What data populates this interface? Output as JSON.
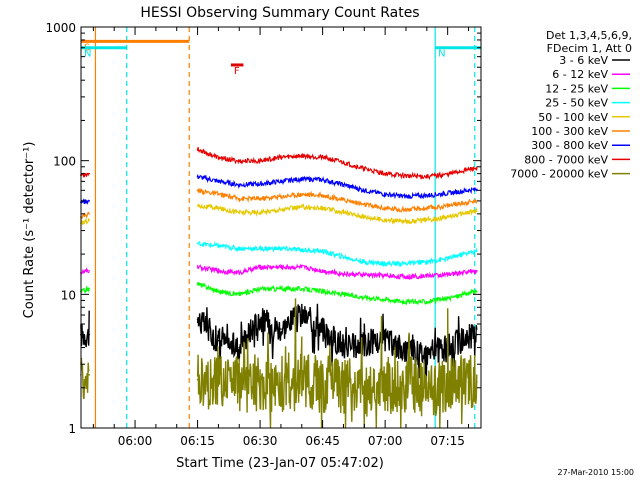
{
  "chart_data": {
    "type": "line",
    "title": "HESSI Observing Summary Count Rates",
    "xlabel": "Start Time (23-Jan-07 05:47:02)",
    "ylabel": "Count Rate (s⁻¹ detector⁻¹)",
    "x_unit": "UT time, 23-Jan-2007",
    "xlim": [
      "05:47:02",
      "07:23:00"
    ],
    "ylim": [
      1,
      1000
    ],
    "yscale": "log",
    "x_ticks": [
      "06:00",
      "06:15",
      "06:30",
      "06:45",
      "07:00",
      "07:15"
    ],
    "y_ticks": [
      "1",
      "10",
      "100",
      "1000"
    ],
    "legend_title": [
      "Det 1,3,4,5,6,9,",
      "FDecim 1, Att 0"
    ],
    "legend_position": "right",
    "grid": false,
    "flags": [
      {
        "label": "S",
        "color": "#ff8000",
        "start": "05:47:02",
        "end": "06:13:00",
        "level": 780
      },
      {
        "label": "N",
        "color": "#00e6e6",
        "start": "05:47:02",
        "end": "05:58:00",
        "level": 700
      },
      {
        "label": "N",
        "color": "#00e6e6",
        "start": "07:12:00",
        "end": "07:23:00",
        "level": 700
      },
      {
        "label": "F",
        "color": "#e00000",
        "start": "06:23:00",
        "end": "06:26:00",
        "level": 520
      }
    ],
    "vertical_markers": [
      {
        "time": "05:50:30",
        "color": "#ff8000",
        "style": "solid"
      },
      {
        "time": "05:58:00",
        "color": "#00e6e6",
        "style": "dashed"
      },
      {
        "time": "06:13:00",
        "color": "#ff8000",
        "style": "dashed"
      },
      {
        "time": "07:12:00",
        "color": "#00e6e6",
        "style": "solid"
      },
      {
        "time": "07:21:30",
        "color": "#00e6e6",
        "style": "dashed"
      }
    ],
    "x": [
      "05:47",
      "05:49",
      "06:13",
      "06:15",
      "06:20",
      "06:25",
      "06:30",
      "06:35",
      "06:40",
      "06:45",
      "06:50",
      "06:55",
      "07:00",
      "07:05",
      "07:10",
      "07:15",
      "07:20",
      "07:22"
    ],
    "series": [
      {
        "name": "3 - 6 keV",
        "color": "#000000",
        "values": [
          5,
          5,
          null,
          6.5,
          4.5,
          4,
          6.5,
          5.5,
          7,
          5.5,
          4,
          4.2,
          4.5,
          3.8,
          3.6,
          4,
          4.8,
          5
        ]
      },
      {
        "name": "6 - 12 keV",
        "color": "#ff00ff",
        "values": [
          14.5,
          15,
          null,
          16,
          15,
          14.5,
          16,
          16,
          16,
          15,
          14.2,
          14,
          13.8,
          13.5,
          13.8,
          14,
          14.8,
          15
        ]
      },
      {
        "name": "12 - 25 keV",
        "color": "#00ff00",
        "values": [
          10.5,
          11,
          null,
          12,
          10.5,
          10,
          11,
          11,
          11,
          10.5,
          10,
          9.5,
          9.2,
          8.8,
          8.8,
          9.3,
          10.2,
          10.5
        ]
      },
      {
        "name": "25 - 50 keV",
        "color": "#00ffff",
        "values": [
          null,
          null,
          null,
          24,
          23,
          22,
          22,
          22,
          21.5,
          21,
          19,
          17.5,
          17,
          17,
          17.5,
          18.5,
          20.5,
          21
        ]
      },
      {
        "name": "50 - 100 keV",
        "color": "#e6c800",
        "values": [
          34,
          36,
          null,
          46,
          44,
          41,
          41,
          43,
          45,
          44,
          41,
          38,
          36,
          35,
          36,
          38,
          41,
          42
        ]
      },
      {
        "name": "100 - 300 keV",
        "color": "#ff8000",
        "values": [
          38,
          40,
          null,
          60,
          56,
          52,
          52,
          54,
          56,
          55,
          51,
          47,
          44,
          43,
          44,
          46,
          49,
          50
        ]
      },
      {
        "name": "300 - 800 keV",
        "color": "#0000ff",
        "values": [
          49,
          50,
          null,
          76,
          70,
          66,
          67,
          70,
          73,
          72,
          66,
          60,
          56,
          54,
          55,
          57,
          60,
          61
        ]
      },
      {
        "name": "800 - 7000 keV",
        "color": "#e60000",
        "values": [
          78,
          80,
          null,
          122,
          105,
          99,
          100,
          106,
          109,
          106,
          97,
          87,
          80,
          77,
          76,
          79,
          86,
          88
        ]
      },
      {
        "name": "7000 - 20000 keV",
        "color": "#808000",
        "values": [
          2.5,
          2.5,
          null,
          2.3,
          2.2,
          2.1,
          2.2,
          2.1,
          2.2,
          2.1,
          2.1,
          2.0,
          2.1,
          2.1,
          2.0,
          2.1,
          2.2,
          2.2
        ]
      }
    ],
    "footer": "27-Mar-2010 15:00"
  }
}
